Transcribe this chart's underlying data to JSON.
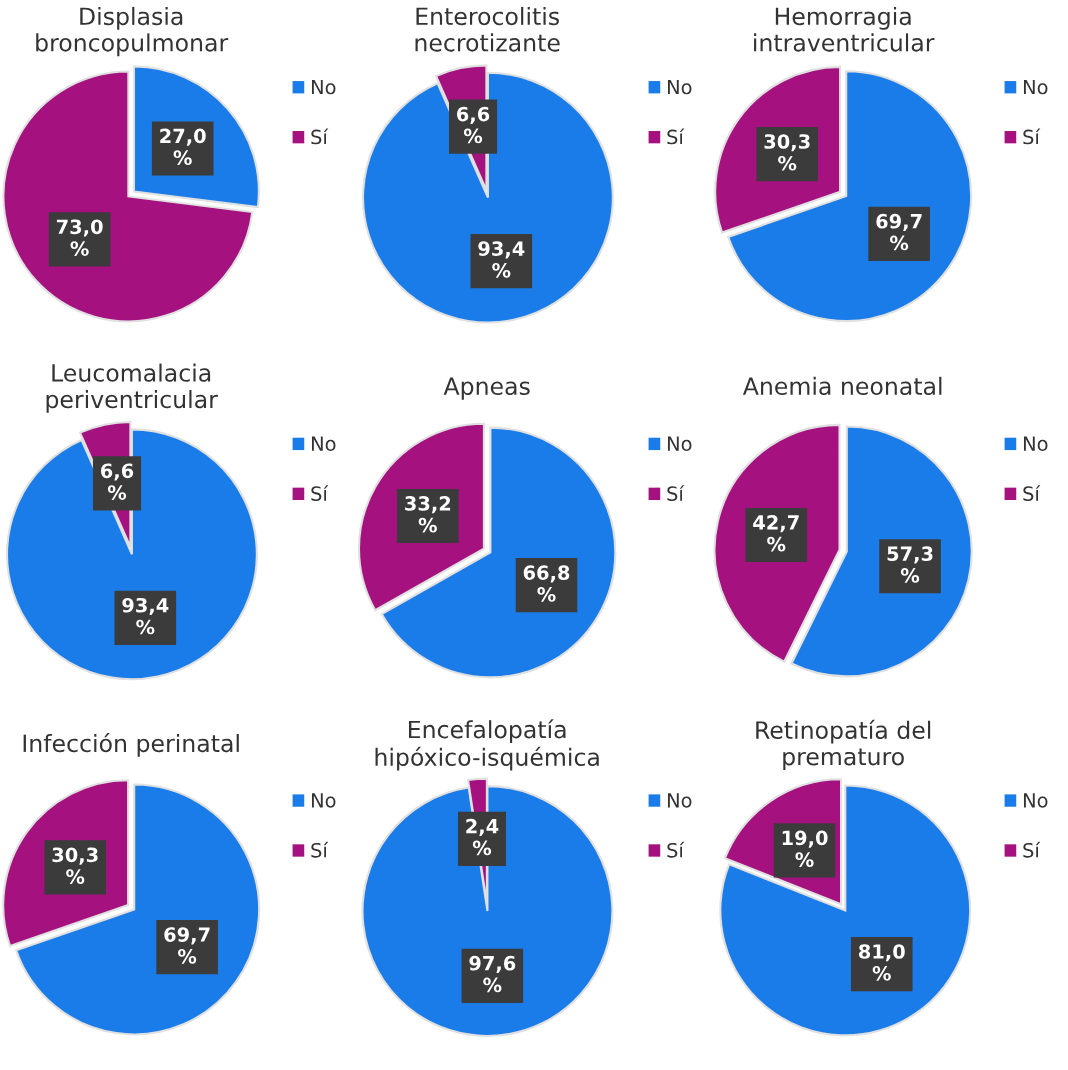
{
  "chart_data": [
    {
      "type": "pie",
      "title": "Displasia broncopulmonar",
      "categories": [
        "No",
        "Sí"
      ],
      "values": [
        27.0,
        73.0
      ],
      "colors": [
        "#1a7ce8",
        "#a5117f"
      ],
      "value_labels": [
        "27,0 %",
        "73,0 %"
      ],
      "legend": "right"
    },
    {
      "type": "pie",
      "title": "Enterocolitis necrotizante",
      "categories": [
        "No",
        "Sí"
      ],
      "values": [
        93.4,
        6.6
      ],
      "colors": [
        "#1a7ce8",
        "#a5117f"
      ],
      "value_labels": [
        "93,4 %",
        "6,6 %"
      ],
      "legend": "right"
    },
    {
      "type": "pie",
      "title": "Hemorragia intraventricular",
      "categories": [
        "No",
        "Sí"
      ],
      "values": [
        69.7,
        30.3
      ],
      "colors": [
        "#1a7ce8",
        "#a5117f"
      ],
      "value_labels": [
        "69,7 %",
        "30,3 %"
      ],
      "legend": "right"
    },
    {
      "type": "pie",
      "title": "Leucomalacia periventricular",
      "categories": [
        "No",
        "Sí"
      ],
      "values": [
        93.4,
        6.6
      ],
      "colors": [
        "#1a7ce8",
        "#a5117f"
      ],
      "value_labels": [
        "93,4 %",
        "6,6 %"
      ],
      "legend": "right"
    },
    {
      "type": "pie",
      "title": "Apneas",
      "categories": [
        "No",
        "Sí"
      ],
      "values": [
        66.8,
        33.2
      ],
      "colors": [
        "#1a7ce8",
        "#a5117f"
      ],
      "value_labels": [
        "66,8 %",
        "33,2 %"
      ],
      "legend": "right"
    },
    {
      "type": "pie",
      "title": "Anemia neonatal",
      "categories": [
        "No",
        "Sí"
      ],
      "values": [
        57.3,
        42.7
      ],
      "colors": [
        "#1a7ce8",
        "#a5117f"
      ],
      "value_labels": [
        "57,3 %",
        "42,7 %"
      ],
      "legend": "right"
    },
    {
      "type": "pie",
      "title": "Infección perinatal",
      "categories": [
        "No",
        "Sí"
      ],
      "values": [
        69.7,
        30.3
      ],
      "colors": [
        "#1a7ce8",
        "#a5117f"
      ],
      "value_labels": [
        "69,7 %",
        "30,3 %"
      ],
      "legend": "right"
    },
    {
      "type": "pie",
      "title": "Encefalopatía hipóxico-isquémica",
      "categories": [
        "No",
        "Sí"
      ],
      "values": [
        97.6,
        2.4
      ],
      "colors": [
        "#1a7ce8",
        "#a5117f"
      ],
      "value_labels": [
        "97,6 %",
        "2,4 %"
      ],
      "legend": "right"
    },
    {
      "type": "pie",
      "title": "Retinopatía del prematuro",
      "categories": [
        "No",
        "Sí"
      ],
      "values": [
        81.0,
        19.0
      ],
      "colors": [
        "#1a7ce8",
        "#a5117f"
      ],
      "value_labels": [
        "81,0 %",
        "19,0 %"
      ],
      "legend": "right"
    }
  ]
}
